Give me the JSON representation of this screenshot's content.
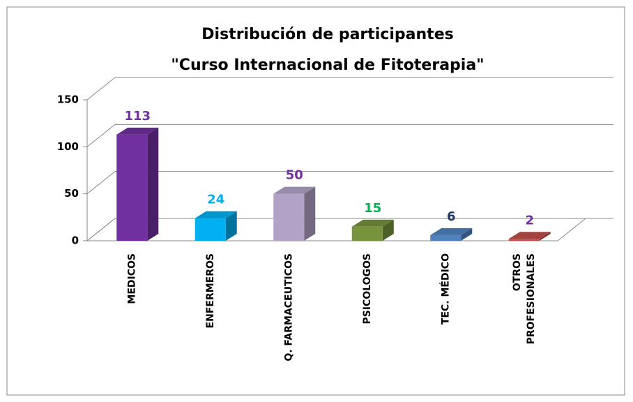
{
  "chart_data": {
    "type": "bar3d",
    "title": [
      "Distribución de participantes",
      "\"Curso Internacional de Fitoterapia\""
    ],
    "categories": [
      "MEDICOS",
      "ENFERMEROS",
      "Q. FARMACEUTICOS",
      "PSICOLOGOS",
      "TEC. MÉDICO",
      "OTROS PROFESIONALES"
    ],
    "values": [
      113,
      24,
      50,
      15,
      6,
      2
    ],
    "colors": [
      "#7030a0",
      "#00b0f0",
      "#b3a2c7",
      "#77933c",
      "#4f81bd",
      "#c0504d"
    ],
    "label_colors": [
      "#7030a0",
      "#00b0f0",
      "#7030a0",
      "#00b050",
      "#1f3864",
      "#7030a0"
    ],
    "ylim": [
      0,
      150
    ],
    "yticks": [
      0,
      50,
      100,
      150
    ],
    "grid": true
  }
}
